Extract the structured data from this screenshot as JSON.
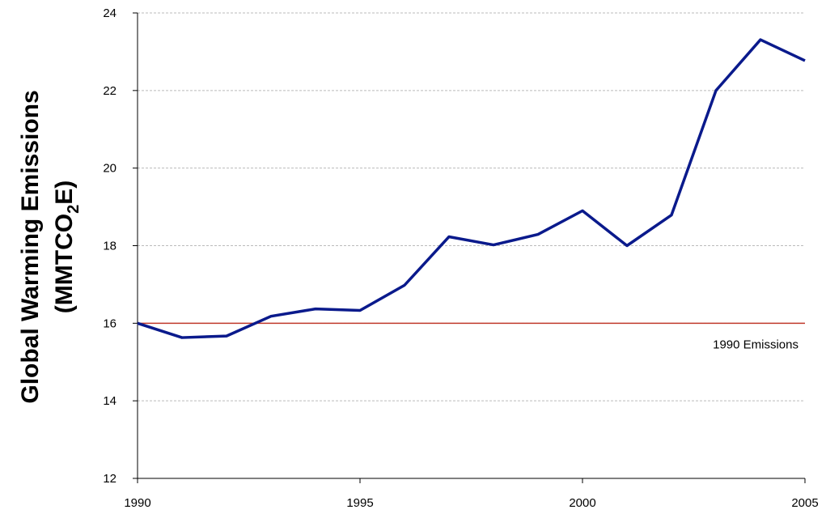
{
  "chart_data": {
    "type": "line",
    "ylabel_line1": "Global Warming Emissions",
    "ylabel_line2": [
      "(MMTCO",
      "2",
      "E)"
    ],
    "x": [
      1990,
      1991,
      1992,
      1993,
      1994,
      1995,
      1996,
      1997,
      1998,
      1999,
      2000,
      2001,
      2002,
      2003,
      2004,
      2005
    ],
    "series": [
      {
        "color": "#0a1a8c",
        "values": [
          16.0,
          15.63,
          15.67,
          16.18,
          16.37,
          16.33,
          16.98,
          18.23,
          18.02,
          18.29,
          18.9,
          18.0,
          18.79,
          22.0,
          23.31,
          22.77
        ]
      }
    ],
    "xlim": [
      1990,
      2005
    ],
    "xticks": [
      1990,
      1995,
      2000,
      2005
    ],
    "ylim": [
      12,
      24
    ],
    "yticks": [
      12,
      14,
      16,
      18,
      20,
      22,
      24
    ],
    "grid": true,
    "reference_line": {
      "value": 16,
      "label": "1990 Emissions",
      "color": "#c0392b"
    }
  }
}
